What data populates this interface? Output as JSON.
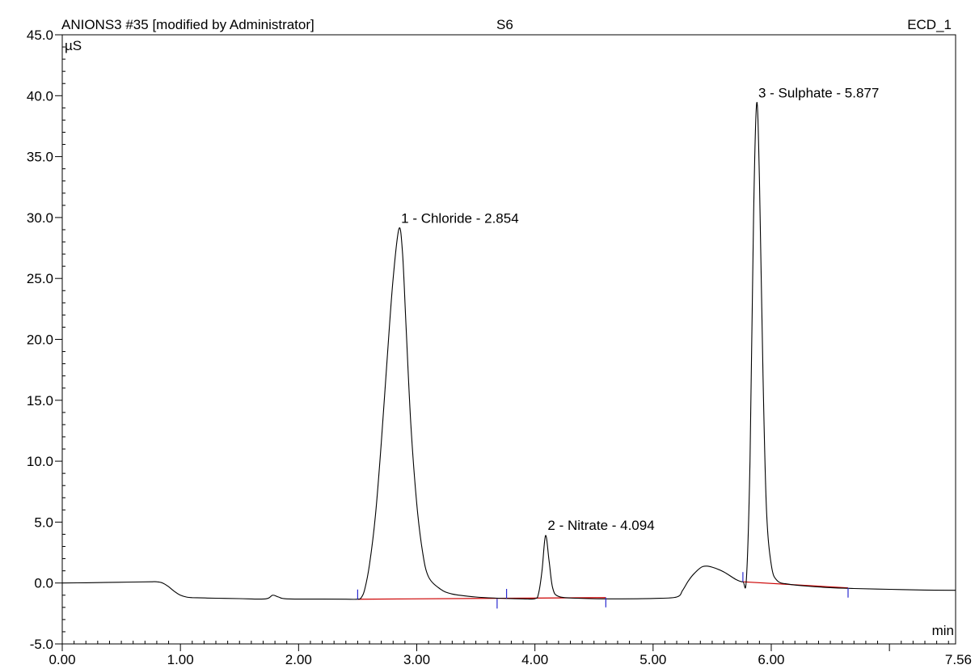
{
  "header": {
    "sample": "ANIONS3 #35 [modified by Administrator]",
    "name": "S6",
    "channel": "ECD_1"
  },
  "chart_data": {
    "type": "line",
    "xlabel": "min",
    "ylabel": "µS",
    "xlim": [
      0.0,
      7.56
    ],
    "ylim": [
      -5.0,
      45.0
    ],
    "x_ticks": [
      {
        "value": 0.0,
        "label": "0.00"
      },
      {
        "value": 1.0,
        "label": "1.00"
      },
      {
        "value": 2.0,
        "label": "2.00"
      },
      {
        "value": 3.0,
        "label": "3.00"
      },
      {
        "value": 4.0,
        "label": "4.00"
      },
      {
        "value": 5.0,
        "label": "5.00"
      },
      {
        "value": 6.0,
        "label": "6.00"
      },
      {
        "value": 7.56,
        "label": "7.56"
      }
    ],
    "y_ticks": [
      {
        "value": -5.0,
        "label": "-5.0"
      },
      {
        "value": 0.0,
        "label": "0.0"
      },
      {
        "value": 5.0,
        "label": "5.0"
      },
      {
        "value": 10.0,
        "label": "10.0"
      },
      {
        "value": 15.0,
        "label": "15.0"
      },
      {
        "value": 20.0,
        "label": "20.0"
      },
      {
        "value": 25.0,
        "label": "25.0"
      },
      {
        "value": 30.0,
        "label": "30.0"
      },
      {
        "value": 35.0,
        "label": "35.0"
      },
      {
        "value": 40.0,
        "label": "40.0"
      },
      {
        "value": 45.0,
        "label": "45.0"
      }
    ],
    "trace": {
      "color": "#000000",
      "points": [
        [
          0.0,
          0.0
        ],
        [
          0.2,
          0.02
        ],
        [
          0.4,
          0.05
        ],
        [
          0.6,
          0.08
        ],
        [
          0.75,
          0.1
        ],
        [
          0.8,
          0.1
        ],
        [
          0.85,
          0.0
        ],
        [
          0.9,
          -0.3
        ],
        [
          0.95,
          -0.7
        ],
        [
          1.0,
          -1.0
        ],
        [
          1.05,
          -1.15
        ],
        [
          1.1,
          -1.2
        ],
        [
          1.3,
          -1.25
        ],
        [
          1.5,
          -1.28
        ],
        [
          1.72,
          -1.3
        ],
        [
          1.78,
          -1.0
        ],
        [
          1.83,
          -1.15
        ],
        [
          1.9,
          -1.3
        ],
        [
          2.2,
          -1.32
        ],
        [
          2.4,
          -1.33
        ],
        [
          2.5,
          -1.33
        ],
        [
          2.53,
          -1.2
        ],
        [
          2.56,
          -0.5
        ],
        [
          2.6,
          1.5
        ],
        [
          2.65,
          5.5
        ],
        [
          2.7,
          11.5
        ],
        [
          2.75,
          18.5
        ],
        [
          2.8,
          25.0
        ],
        [
          2.85,
          29.1
        ],
        [
          2.88,
          27.0
        ],
        [
          2.91,
          21.0
        ],
        [
          2.95,
          13.0
        ],
        [
          3.0,
          6.5
        ],
        [
          3.05,
          2.5
        ],
        [
          3.1,
          0.5
        ],
        [
          3.2,
          -0.5
        ],
        [
          3.3,
          -0.9
        ],
        [
          3.5,
          -1.15
        ],
        [
          3.7,
          -1.25
        ],
        [
          3.9,
          -1.3
        ],
        [
          4.0,
          -1.29
        ],
        [
          4.03,
          -0.9
        ],
        [
          4.06,
          1.0
        ],
        [
          4.09,
          3.9
        ],
        [
          4.12,
          1.8
        ],
        [
          4.15,
          -0.4
        ],
        [
          4.2,
          -1.1
        ],
        [
          4.35,
          -1.25
        ],
        [
          4.6,
          -1.3
        ],
        [
          5.0,
          -1.27
        ],
        [
          5.2,
          -1.15
        ],
        [
          5.25,
          -0.6
        ],
        [
          5.3,
          0.2
        ],
        [
          5.35,
          0.8
        ],
        [
          5.42,
          1.35
        ],
        [
          5.5,
          1.3
        ],
        [
          5.6,
          0.9
        ],
        [
          5.7,
          0.3
        ],
        [
          5.76,
          0.1
        ],
        [
          5.79,
          0.4
        ],
        [
          5.82,
          10.0
        ],
        [
          5.85,
          30.0
        ],
        [
          5.877,
          39.4
        ],
        [
          5.9,
          33.0
        ],
        [
          5.93,
          17.0
        ],
        [
          5.96,
          6.0
        ],
        [
          6.0,
          1.5
        ],
        [
          6.05,
          0.2
        ],
        [
          6.15,
          -0.1
        ],
        [
          6.3,
          -0.25
        ],
        [
          6.5,
          -0.38
        ],
        [
          6.7,
          -0.45
        ],
        [
          7.0,
          -0.52
        ],
        [
          7.3,
          -0.58
        ],
        [
          7.56,
          -0.6
        ]
      ]
    },
    "baselines": {
      "color": "#cc0000",
      "segments": [
        [
          [
            2.5,
            -1.33
          ],
          [
            4.6,
            -1.2
          ]
        ],
        [
          [
            5.76,
            0.1
          ],
          [
            6.65,
            -0.4
          ]
        ]
      ]
    },
    "integration_markers": {
      "color": "#2a2ad0",
      "items": [
        {
          "x": 2.5,
          "y": -1.33,
          "dir": "up"
        },
        {
          "x": 3.68,
          "y": -1.3,
          "dir": "down"
        },
        {
          "x": 3.76,
          "y": -1.28,
          "dir": "up"
        },
        {
          "x": 4.6,
          "y": -1.2,
          "dir": "down"
        },
        {
          "x": 5.76,
          "y": 0.1,
          "dir": "up"
        },
        {
          "x": 6.65,
          "y": -0.4,
          "dir": "down"
        }
      ]
    },
    "peaks": [
      {
        "label": "1 - Chloride - 2.854",
        "x": 2.854,
        "y": 29.1
      },
      {
        "label": "2 - Nitrate - 4.094",
        "x": 4.094,
        "y": 3.9
      },
      {
        "label": "3 - Sulphate - 5.877",
        "x": 5.877,
        "y": 39.4
      }
    ]
  }
}
